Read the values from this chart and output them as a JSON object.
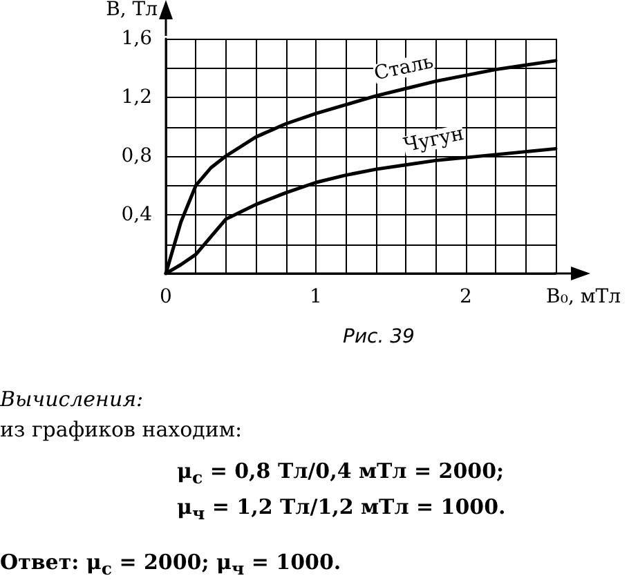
{
  "chart_data": {
    "type": "line",
    "xlabel": "B₀, мТл",
    "ylabel": "B, Тл",
    "xlim": [
      0,
      2.6
    ],
    "ylim": [
      0,
      1.6
    ],
    "xticks": [
      0,
      {
        "value": 0.2,
        "label": null
      },
      {
        "value": 0.4,
        "label": null
      },
      {
        "value": 0.6,
        "label": null
      },
      {
        "value": 0.8,
        "label": null
      },
      1,
      {
        "value": 1.2,
        "label": null
      },
      {
        "value": 1.4,
        "label": null
      },
      {
        "value": 1.6,
        "label": null
      },
      {
        "value": 1.8,
        "label": null
      },
      2,
      {
        "value": 2.2,
        "label": null
      },
      {
        "value": 2.4,
        "label": null
      },
      {
        "value": 2.6,
        "label": null
      }
    ],
    "yticks": [
      {
        "value": 0,
        "label": null
      },
      {
        "value": 0.2,
        "label": null
      },
      "0,4",
      {
        "value": 0.6,
        "label": null
      },
      {
        "value": 0.8,
        "label": "0,8"
      },
      {
        "value": 1.0,
        "label": null
      },
      {
        "value": 1.2,
        "label": "1,2"
      },
      {
        "value": 1.4,
        "label": null
      },
      {
        "value": 1.6,
        "label": "1,6"
      }
    ],
    "grid": true,
    "marker": "none",
    "legend": false,
    "series": [
      {
        "name": "Сталь",
        "color": "#000000",
        "x": [
          0,
          0.1,
          0.2,
          0.3,
          0.4,
          0.6,
          0.8,
          1,
          1.2,
          1.4,
          1.6,
          1.8,
          2,
          2.2,
          2.4,
          2.6
        ],
        "values": [
          0,
          0.35,
          0.6,
          0.72,
          0.8,
          0.93,
          1.02,
          1.09,
          1.15,
          1.21,
          1.26,
          1.31,
          1.35,
          1.39,
          1.42,
          1.45
        ]
      },
      {
        "name": "Чугун",
        "color": "#000000",
        "x": [
          0,
          0.1,
          0.2,
          0.3,
          0.4,
          0.5,
          0.6,
          0.8,
          1,
          1.2,
          1.4,
          1.6,
          1.8,
          2,
          2.2,
          2.4,
          2.6
        ],
        "values": [
          0,
          0.06,
          0.13,
          0.25,
          0.37,
          0.42,
          0.47,
          0.55,
          0.62,
          0.67,
          0.71,
          0.74,
          0.77,
          0.79,
          0.81,
          0.83,
          0.85
        ]
      }
    ],
    "annotations": [
      "Рис. 39",
      "Вычисления:",
      "из графиков находим:",
      "μ$_{с}$ = 0,8 Тл/0,4 мТл = 2000;",
      "μ$_{ч}$ = 1,2 Тл/1,2 мТл = 1000.",
      "Ответ: μ$_{с}$ = 2000;  μ$_{ч}$ = 1000."
    ]
  }
}
